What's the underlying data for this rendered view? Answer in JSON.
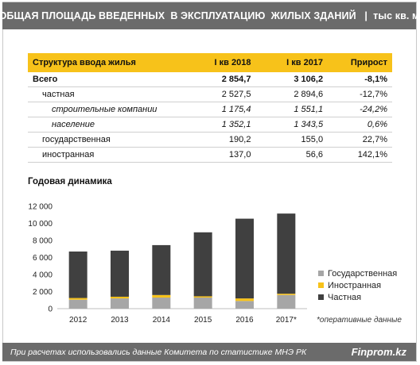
{
  "header": {
    "title": "ОБЩАЯ ПЛОЩАДЬ ВВЕДЕННЫХ  В ЭКСПЛУАТАЦИЮ  ЖИЛЫХ ЗДАНИЙ   |  тыс кв. м"
  },
  "table": {
    "headers": [
      "Структура ввода жилья",
      "I кв 2018",
      "I кв 2017",
      "Прирост"
    ],
    "rows": [
      {
        "label": "Всего",
        "v2018": "2 854,7",
        "v2017": "3 106,2",
        "growth": "-8,1%"
      },
      {
        "label": "частная",
        "v2018": "2 527,5",
        "v2017": "2 894,6",
        "growth": "-12,7%"
      },
      {
        "label": "строительные компании",
        "v2018": "1 175,4",
        "v2017": "1 551,1",
        "growth": "-24,2%"
      },
      {
        "label": "население",
        "v2018": "1 352,1",
        "v2017": "1 343,5",
        "growth": "0,6%"
      },
      {
        "label": "государственная",
        "v2018": "190,2",
        "v2017": "155,0",
        "growth": "22,7%"
      },
      {
        "label": "иностранная",
        "v2018": "137,0",
        "v2017": "56,6",
        "growth": "142,1%"
      }
    ]
  },
  "chart_title": "Годовая  динамика",
  "chart_data": {
    "type": "bar",
    "stacked": true,
    "categories": [
      "2012",
      "2013",
      "2014",
      "2015",
      "2016",
      "2017*"
    ],
    "series": [
      {
        "name": "Государственная",
        "color": "#a6a6a6",
        "values": [
          1050,
          1200,
          1300,
          1300,
          900,
          1600
        ]
      },
      {
        "name": "Иностранная",
        "color": "#f7c21a",
        "values": [
          200,
          200,
          300,
          150,
          300,
          150
        ]
      },
      {
        "name": "Частная",
        "color": "#404040",
        "values": [
          5450,
          5400,
          5850,
          7500,
          9350,
          9400
        ]
      }
    ],
    "ylim": [
      0,
      12000
    ],
    "yticks": [
      "0",
      "2 000",
      "4 000",
      "6 000",
      "8 000",
      "10 000",
      "12 000"
    ],
    "legend": "right",
    "note": "*оперативные данные"
  },
  "footer": {
    "note": "При расчетах использовались данные  Комитета по статистике МНЭ РК",
    "brand": "Finprom.kz"
  }
}
